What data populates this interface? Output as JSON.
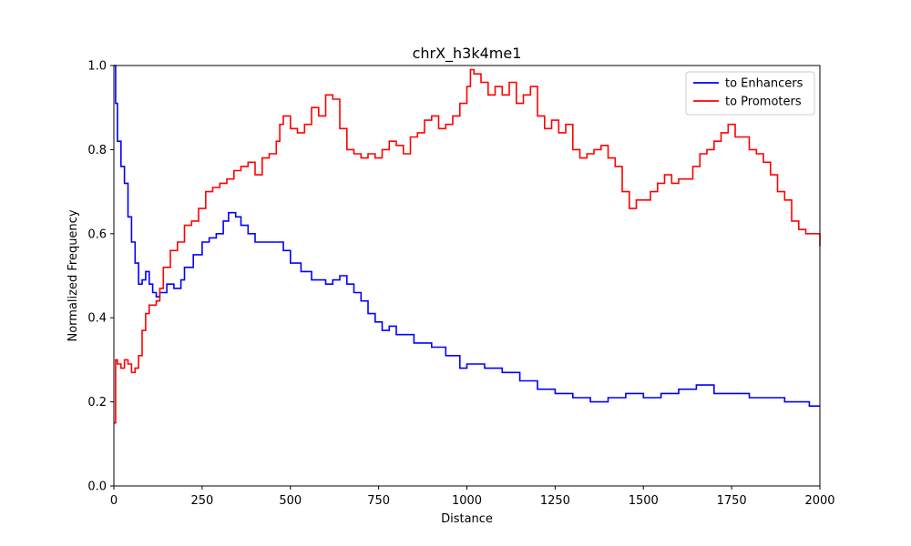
{
  "chart_data": {
    "type": "line",
    "title": "chrX_h3k4me1",
    "xlabel": "Distance",
    "ylabel": "Normalized Frequency",
    "xlim": [
      0,
      2000
    ],
    "ylim": [
      0.0,
      1.0
    ],
    "xticks": [
      0,
      250,
      500,
      750,
      1000,
      1250,
      1500,
      1750,
      2000
    ],
    "xtick_labels": [
      "0",
      "250",
      "500",
      "750",
      "1000",
      "1250",
      "1500",
      "1750",
      "2000"
    ],
    "yticks": [
      0.0,
      0.2,
      0.4,
      0.6,
      0.8,
      1.0
    ],
    "ytick_labels": [
      "0.0",
      "0.2",
      "0.4",
      "0.6",
      "0.8",
      "1.0"
    ],
    "grid": false,
    "legend_position": "top-right",
    "series": [
      {
        "name": "to Enhancers",
        "color": "#0000ff",
        "x": [
          0,
          5,
          10,
          20,
          30,
          40,
          50,
          60,
          70,
          80,
          90,
          100,
          110,
          120,
          130,
          150,
          170,
          190,
          200,
          225,
          250,
          270,
          290,
          310,
          325,
          345,
          360,
          380,
          400,
          420,
          450,
          480,
          500,
          530,
          560,
          600,
          620,
          640,
          660,
          680,
          700,
          720,
          740,
          760,
          780,
          800,
          850,
          900,
          940,
          980,
          1000,
          1050,
          1100,
          1150,
          1200,
          1250,
          1300,
          1350,
          1400,
          1450,
          1500,
          1550,
          1600,
          1650,
          1700,
          1750,
          1800,
          1850,
          1900,
          1950,
          1970,
          2000
        ],
        "y": [
          1.0,
          0.91,
          0.82,
          0.76,
          0.72,
          0.64,
          0.58,
          0.53,
          0.48,
          0.49,
          0.51,
          0.48,
          0.46,
          0.45,
          0.46,
          0.48,
          0.47,
          0.49,
          0.52,
          0.55,
          0.58,
          0.59,
          0.6,
          0.63,
          0.65,
          0.64,
          0.62,
          0.6,
          0.58,
          0.58,
          0.58,
          0.56,
          0.53,
          0.51,
          0.49,
          0.48,
          0.49,
          0.5,
          0.48,
          0.46,
          0.44,
          0.41,
          0.39,
          0.37,
          0.38,
          0.36,
          0.34,
          0.33,
          0.31,
          0.28,
          0.29,
          0.28,
          0.27,
          0.25,
          0.23,
          0.22,
          0.21,
          0.2,
          0.21,
          0.22,
          0.21,
          0.22,
          0.23,
          0.24,
          0.22,
          0.22,
          0.21,
          0.21,
          0.2,
          0.2,
          0.19,
          0.19
        ]
      },
      {
        "name": "to Promoters",
        "color": "#ff0000",
        "x": [
          0,
          5,
          10,
          20,
          30,
          40,
          50,
          60,
          70,
          80,
          90,
          100,
          120,
          130,
          140,
          160,
          180,
          200,
          220,
          240,
          260,
          280,
          300,
          320,
          340,
          360,
          380,
          400,
          420,
          440,
          460,
          470,
          480,
          500,
          520,
          540,
          560,
          580,
          600,
          620,
          640,
          660,
          680,
          700,
          720,
          740,
          760,
          780,
          800,
          820,
          840,
          860,
          880,
          900,
          920,
          940,
          960,
          980,
          1000,
          1010,
          1020,
          1040,
          1060,
          1080,
          1100,
          1120,
          1140,
          1160,
          1180,
          1200,
          1220,
          1240,
          1260,
          1280,
          1300,
          1320,
          1340,
          1360,
          1380,
          1400,
          1420,
          1440,
          1460,
          1480,
          1500,
          1520,
          1540,
          1560,
          1580,
          1600,
          1620,
          1640,
          1660,
          1680,
          1700,
          1720,
          1740,
          1760,
          1780,
          1800,
          1820,
          1840,
          1860,
          1880,
          1900,
          1920,
          1940,
          1960,
          1980,
          2000
        ],
        "y": [
          0.15,
          0.3,
          0.29,
          0.28,
          0.3,
          0.29,
          0.27,
          0.28,
          0.31,
          0.37,
          0.41,
          0.43,
          0.44,
          0.47,
          0.52,
          0.56,
          0.58,
          0.62,
          0.63,
          0.66,
          0.7,
          0.71,
          0.72,
          0.73,
          0.75,
          0.76,
          0.77,
          0.74,
          0.78,
          0.79,
          0.82,
          0.86,
          0.88,
          0.85,
          0.84,
          0.86,
          0.9,
          0.88,
          0.93,
          0.92,
          0.85,
          0.8,
          0.79,
          0.78,
          0.79,
          0.78,
          0.8,
          0.82,
          0.81,
          0.79,
          0.83,
          0.84,
          0.87,
          0.88,
          0.85,
          0.86,
          0.88,
          0.91,
          0.95,
          0.99,
          0.98,
          0.96,
          0.93,
          0.95,
          0.93,
          0.96,
          0.91,
          0.93,
          0.95,
          0.88,
          0.85,
          0.87,
          0.84,
          0.86,
          0.8,
          0.78,
          0.79,
          0.8,
          0.81,
          0.78,
          0.76,
          0.7,
          0.66,
          0.68,
          0.68,
          0.7,
          0.72,
          0.74,
          0.72,
          0.73,
          0.73,
          0.76,
          0.79,
          0.8,
          0.82,
          0.84,
          0.86,
          0.83,
          0.83,
          0.8,
          0.79,
          0.77,
          0.74,
          0.7,
          0.68,
          0.63,
          0.61,
          0.6,
          0.6,
          0.57
        ]
      }
    ]
  }
}
